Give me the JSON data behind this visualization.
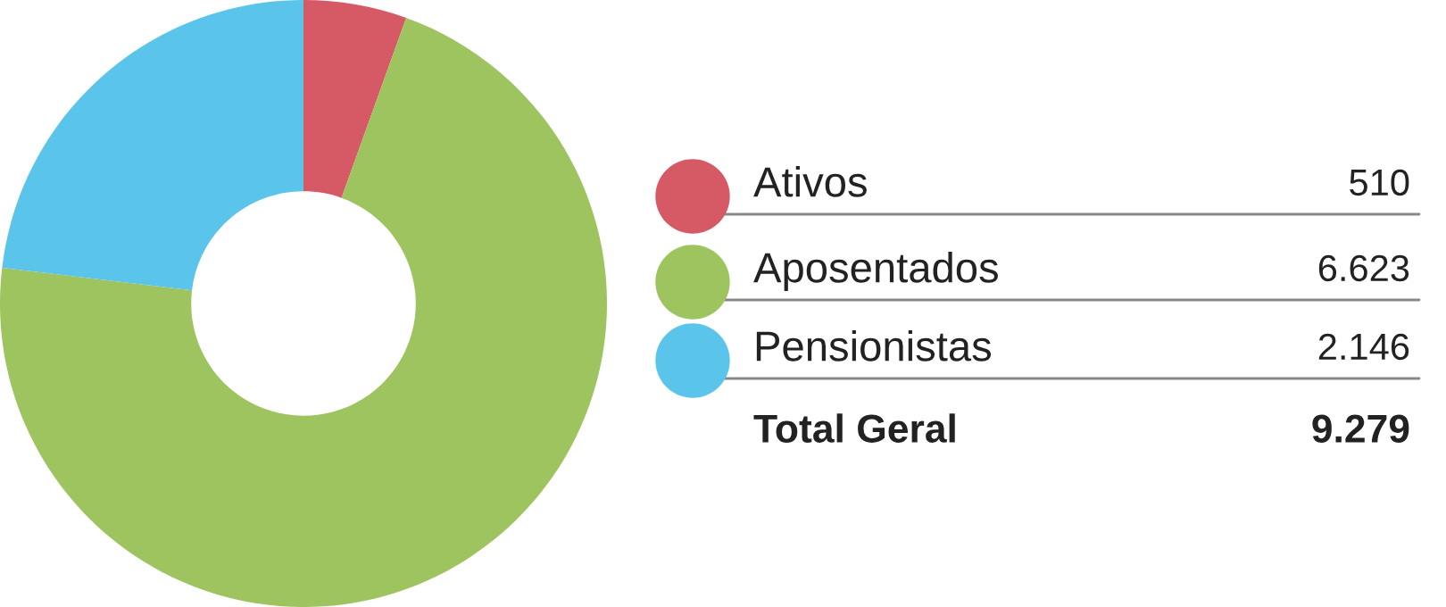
{
  "chart_data": {
    "type": "donut",
    "categories": [
      "Ativos",
      "Aposentados",
      "Pensionistas"
    ],
    "values": [
      510,
      6623,
      2146
    ],
    "colors": [
      "#d65a66",
      "#9dc45f",
      "#5bc4ea"
    ],
    "value_labels": [
      "510",
      "6.623",
      "2.146"
    ],
    "annotations": [
      "Total Geral",
      "9.279"
    ],
    "legend": "right"
  }
}
